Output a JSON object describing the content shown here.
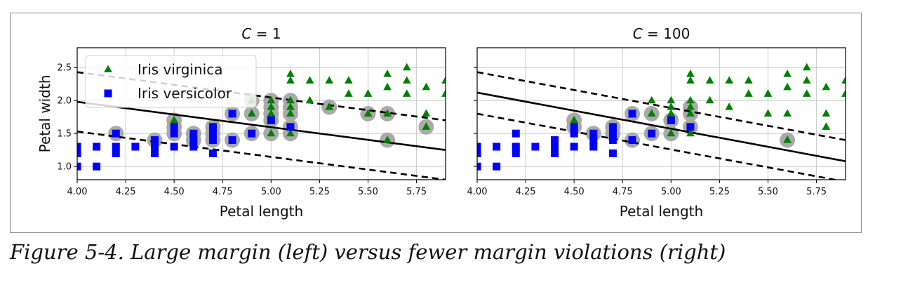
{
  "caption": "Figure 5-4. Large margin (left) versus fewer margin violations (right)",
  "colors": {
    "virginica": "#008000",
    "versicolor": "#0000ff",
    "support": "#aaaaaa",
    "grid": "#cccccc",
    "line": "#000000"
  },
  "chart_data": [
    {
      "type": "scatter",
      "title": "C = 1",
      "xlabel": "Petal length",
      "ylabel": "Petal width",
      "xlim": [
        4.0,
        5.9
      ],
      "ylim": [
        0.8,
        2.8
      ],
      "xticks": [
        "4.00",
        "4.25",
        "4.50",
        "4.75",
        "5.00",
        "5.25",
        "5.50",
        "5.75"
      ],
      "yticks": [
        "1.0",
        "1.5",
        "2.0",
        "2.5"
      ],
      "grid": true,
      "legend": {
        "placement": "top-left",
        "entries": [
          "Iris virginica",
          "Iris versicolor"
        ]
      },
      "decision_boundary": {
        "y_at_xmin": 1.98,
        "y_at_xmax": 1.25
      },
      "margin_upper": {
        "y_at_xmin": 2.43,
        "y_at_xmax": 1.7
      },
      "margin_lower": {
        "y_at_xmin": 1.53,
        "y_at_xmax": 0.8
      },
      "series": [
        {
          "name": "Iris virginica",
          "marker": "triangle",
          "points": [
            [
              4.5,
              1.7
            ],
            [
              4.9,
              1.8
            ],
            [
              4.9,
              2.0
            ],
            [
              5.0,
              1.5
            ],
            [
              5.0,
              1.8
            ],
            [
              5.0,
              1.9
            ],
            [
              5.0,
              2.0
            ],
            [
              5.1,
              1.5
            ],
            [
              5.1,
              1.8
            ],
            [
              5.1,
              1.9
            ],
            [
              5.1,
              2.0
            ],
            [
              5.1,
              2.3
            ],
            [
              5.1,
              2.4
            ],
            [
              5.2,
              2.0
            ],
            [
              5.2,
              2.3
            ],
            [
              5.3,
              1.9
            ],
            [
              5.3,
              2.3
            ],
            [
              5.4,
              2.1
            ],
            [
              5.4,
              2.3
            ],
            [
              5.5,
              1.8
            ],
            [
              5.5,
              2.1
            ],
            [
              5.6,
              1.4
            ],
            [
              5.6,
              1.8
            ],
            [
              5.6,
              2.2
            ],
            [
              5.6,
              2.4
            ],
            [
              5.7,
              2.1
            ],
            [
              5.7,
              2.3
            ],
            [
              5.7,
              2.5
            ],
            [
              5.8,
              1.6
            ],
            [
              5.8,
              1.8
            ],
            [
              5.8,
              2.2
            ],
            [
              5.9,
              2.1
            ],
            [
              5.9,
              2.3
            ]
          ]
        },
        {
          "name": "Iris versicolor",
          "marker": "square",
          "points": [
            [
              4.0,
              1.0
            ],
            [
              4.0,
              1.2
            ],
            [
              4.0,
              1.3
            ],
            [
              4.1,
              1.0
            ],
            [
              4.1,
              1.3
            ],
            [
              4.2,
              1.2
            ],
            [
              4.2,
              1.3
            ],
            [
              4.2,
              1.5
            ],
            [
              4.3,
              1.3
            ],
            [
              4.4,
              1.2
            ],
            [
              4.4,
              1.3
            ],
            [
              4.4,
              1.4
            ],
            [
              4.5,
              1.3
            ],
            [
              4.5,
              1.5
            ],
            [
              4.5,
              1.6
            ],
            [
              4.6,
              1.3
            ],
            [
              4.6,
              1.4
            ],
            [
              4.6,
              1.5
            ],
            [
              4.7,
              1.2
            ],
            [
              4.7,
              1.4
            ],
            [
              4.7,
              1.5
            ],
            [
              4.7,
              1.6
            ],
            [
              4.8,
              1.4
            ],
            [
              4.8,
              1.8
            ],
            [
              4.9,
              1.5
            ],
            [
              5.0,
              1.7
            ],
            [
              5.1,
              1.6
            ]
          ]
        }
      ],
      "support_vectors": [
        [
          4.2,
          1.5
        ],
        [
          4.4,
          1.4
        ],
        [
          4.5,
          1.5
        ],
        [
          4.5,
          1.6
        ],
        [
          4.5,
          1.7
        ],
        [
          4.6,
          1.4
        ],
        [
          4.6,
          1.5
        ],
        [
          4.7,
          1.4
        ],
        [
          4.7,
          1.5
        ],
        [
          4.7,
          1.6
        ],
        [
          4.8,
          1.4
        ],
        [
          4.8,
          1.8
        ],
        [
          4.9,
          1.5
        ],
        [
          4.9,
          1.8
        ],
        [
          4.9,
          2.0
        ],
        [
          5.0,
          1.5
        ],
        [
          5.0,
          1.7
        ],
        [
          5.0,
          1.8
        ],
        [
          5.0,
          1.9
        ],
        [
          5.0,
          2.0
        ],
        [
          5.1,
          1.5
        ],
        [
          5.1,
          1.6
        ],
        [
          5.1,
          1.8
        ],
        [
          5.1,
          1.9
        ],
        [
          5.1,
          2.0
        ],
        [
          5.3,
          1.9
        ],
        [
          5.5,
          1.8
        ],
        [
          5.6,
          1.4
        ],
        [
          5.6,
          1.8
        ],
        [
          5.8,
          1.6
        ]
      ]
    },
    {
      "type": "scatter",
      "title": "C = 100",
      "xlabel": "Petal length",
      "ylabel": "",
      "xlim": [
        4.0,
        5.9
      ],
      "ylim": [
        0.8,
        2.8
      ],
      "xticks": [
        "4.00",
        "4.25",
        "4.50",
        "4.75",
        "5.00",
        "5.25",
        "5.50",
        "5.75"
      ],
      "yticks": [],
      "grid": true,
      "decision_boundary": {
        "y_at_xmin": 2.12,
        "y_at_xmax": 1.08
      },
      "margin_upper": {
        "y_at_xmin": 2.43,
        "y_at_xmax": 1.4
      },
      "margin_lower": {
        "y_at_xmin": 1.8,
        "y_at_xmax": 0.77
      },
      "series": [
        {
          "name": "Iris virginica",
          "marker": "triangle",
          "points": [
            [
              4.5,
              1.7
            ],
            [
              4.9,
              1.8
            ],
            [
              4.9,
              2.0
            ],
            [
              5.0,
              1.5
            ],
            [
              5.0,
              1.8
            ],
            [
              5.0,
              1.9
            ],
            [
              5.0,
              2.0
            ],
            [
              5.1,
              1.5
            ],
            [
              5.1,
              1.8
            ],
            [
              5.1,
              1.9
            ],
            [
              5.1,
              2.0
            ],
            [
              5.1,
              2.3
            ],
            [
              5.1,
              2.4
            ],
            [
              5.2,
              2.0
            ],
            [
              5.2,
              2.3
            ],
            [
              5.3,
              1.9
            ],
            [
              5.3,
              2.3
            ],
            [
              5.4,
              2.1
            ],
            [
              5.4,
              2.3
            ],
            [
              5.5,
              1.8
            ],
            [
              5.5,
              2.1
            ],
            [
              5.6,
              1.4
            ],
            [
              5.6,
              1.8
            ],
            [
              5.6,
              2.2
            ],
            [
              5.6,
              2.4
            ],
            [
              5.7,
              2.1
            ],
            [
              5.7,
              2.3
            ],
            [
              5.7,
              2.5
            ],
            [
              5.8,
              1.6
            ],
            [
              5.8,
              1.8
            ],
            [
              5.8,
              2.2
            ],
            [
              5.9,
              2.1
            ],
            [
              5.9,
              2.3
            ]
          ]
        },
        {
          "name": "Iris versicolor",
          "marker": "square",
          "points": [
            [
              4.0,
              1.0
            ],
            [
              4.0,
              1.2
            ],
            [
              4.0,
              1.3
            ],
            [
              4.1,
              1.0
            ],
            [
              4.1,
              1.3
            ],
            [
              4.2,
              1.2
            ],
            [
              4.2,
              1.3
            ],
            [
              4.2,
              1.5
            ],
            [
              4.3,
              1.3
            ],
            [
              4.4,
              1.2
            ],
            [
              4.4,
              1.3
            ],
            [
              4.4,
              1.4
            ],
            [
              4.5,
              1.3
            ],
            [
              4.5,
              1.5
            ],
            [
              4.5,
              1.6
            ],
            [
              4.6,
              1.3
            ],
            [
              4.6,
              1.4
            ],
            [
              4.6,
              1.5
            ],
            [
              4.7,
              1.2
            ],
            [
              4.7,
              1.4
            ],
            [
              4.7,
              1.5
            ],
            [
              4.7,
              1.6
            ],
            [
              4.8,
              1.4
            ],
            [
              4.8,
              1.8
            ],
            [
              4.9,
              1.5
            ],
            [
              5.0,
              1.7
            ],
            [
              5.1,
              1.6
            ]
          ]
        }
      ],
      "support_vectors": [
        [
          4.5,
          1.6
        ],
        [
          4.5,
          1.7
        ],
        [
          4.6,
          1.5
        ],
        [
          4.7,
          1.5
        ],
        [
          4.7,
          1.6
        ],
        [
          4.8,
          1.4
        ],
        [
          4.8,
          1.8
        ],
        [
          4.9,
          1.5
        ],
        [
          4.9,
          1.8
        ],
        [
          5.0,
          1.5
        ],
        [
          5.0,
          1.7
        ],
        [
          5.1,
          1.6
        ],
        [
          5.1,
          1.8
        ],
        [
          5.1,
          1.9
        ],
        [
          5.6,
          1.4
        ]
      ]
    }
  ]
}
